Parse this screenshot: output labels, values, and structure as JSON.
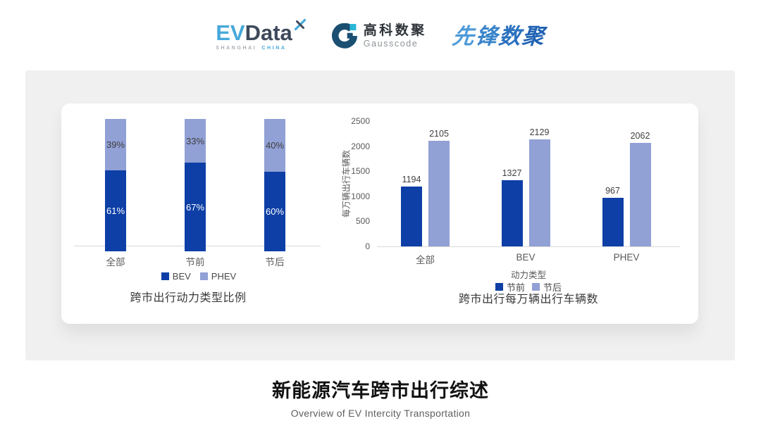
{
  "header": {
    "evdata": {
      "ev": "EV",
      "data": "Data",
      "sub_left": "SHANGHAI",
      "sub_right": "CHINA"
    },
    "gausscode": {
      "cn": "高科数聚",
      "en": "Gausscode"
    },
    "xianfeng": {
      "text": "先锋数聚",
      "chars": [
        "先",
        "锋",
        "数",
        "聚"
      ],
      "char_colors": [
        "#4E9AD8",
        "#3984CB",
        "#2A70BE",
        "#2163B4"
      ]
    },
    "icons": {
      "evdata_mark": "sparkle-x-icon",
      "gausscode_mark": "g-ring-icon"
    }
  },
  "chart_data": [
    {
      "type": "bar",
      "variant": "stacked-percent",
      "title": "跨市出行动力类型比例",
      "categories": [
        "全部",
        "节前",
        "节后"
      ],
      "series": [
        {
          "name": "BEV",
          "values": [
            61,
            67,
            60
          ],
          "color": "#0D3FA6",
          "label_color": "#FFFFFF"
        },
        {
          "name": "PHEV",
          "values": [
            39,
            33,
            40
          ],
          "color": "#91A0D5",
          "label_color": "#3F3F3F"
        }
      ],
      "value_suffix": "%",
      "ylim": [
        0,
        100
      ],
      "grid": false,
      "legend": [
        "BEV",
        "PHEV"
      ],
      "legend_position": "bottom"
    },
    {
      "type": "bar",
      "variant": "grouped",
      "title": "跨市出行每万辆出行车辆数",
      "categories": [
        "全部",
        "BEV",
        "PHEV"
      ],
      "xlabel": "动力类型",
      "ylabel": "每万辆出行车辆数",
      "series": [
        {
          "name": "节前",
          "values": [
            1194,
            1327,
            967
          ],
          "color": "#0D3FA6"
        },
        {
          "name": "节后",
          "values": [
            2105,
            2129,
            2062
          ],
          "color": "#91A0D5"
        }
      ],
      "ylim": [
        0,
        2500
      ],
      "yticks": [
        0,
        500,
        1000,
        1500,
        2000,
        2500
      ],
      "grid": false,
      "legend": [
        "节前",
        "节后"
      ],
      "legend_position": "bottom"
    }
  ],
  "footer": {
    "title": "新能源汽车跨市出行综述",
    "subtitle": "Overview of EV Intercity Transportation"
  },
  "colors": {
    "series_dark_blue": "#0D3FA6",
    "series_light_blue": "#91A0D5",
    "panel_gray": "#F0F0F0",
    "axis_gray": "#D9D9D9",
    "tick_text_gray": "#595959"
  }
}
